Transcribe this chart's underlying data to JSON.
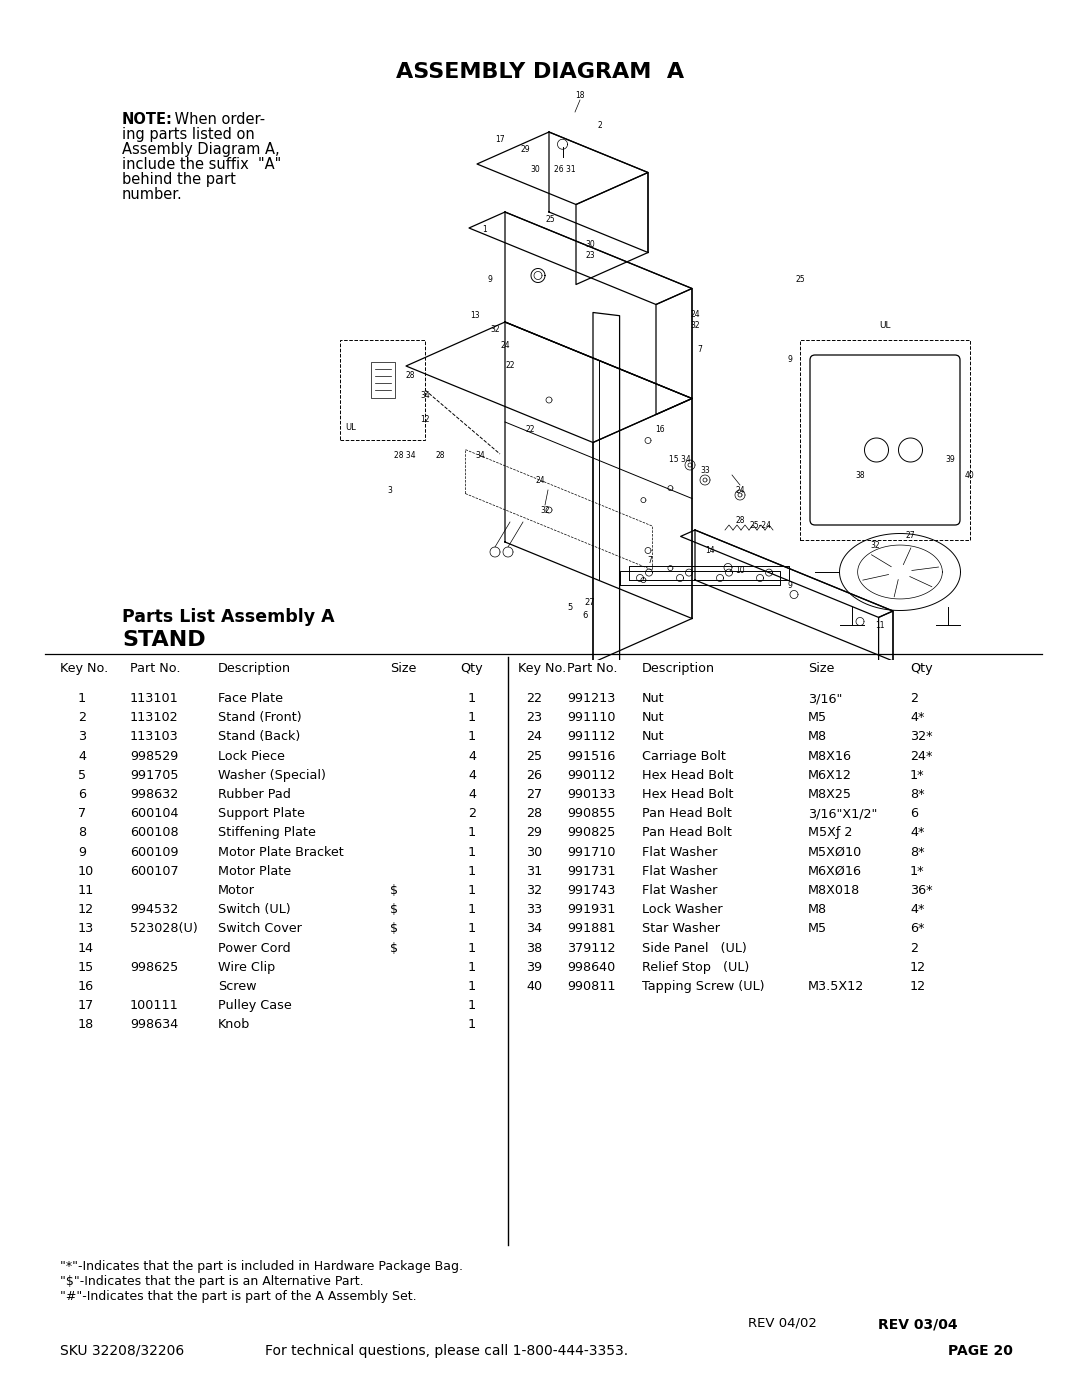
{
  "title": "ASSEMBLY DIAGRAM  A",
  "parts_list_title1": "Parts List Assembly A",
  "parts_list_title2": "STAND",
  "parts_left": [
    [
      "1",
      "113101",
      "Face Plate",
      "",
      "1"
    ],
    [
      "2",
      "113102",
      "Stand (Front)",
      "",
      "1"
    ],
    [
      "3",
      "113103",
      "Stand (Back)",
      "",
      "1"
    ],
    [
      "4",
      "998529",
      "Lock Piece",
      "",
      "4"
    ],
    [
      "5",
      "991705",
      "Washer (Special)",
      "",
      "4"
    ],
    [
      "6",
      "998632",
      "Rubber Pad",
      "",
      "4"
    ],
    [
      "7",
      "600104",
      "Support Plate",
      "",
      "2"
    ],
    [
      "8",
      "600108",
      "Stiffening Plate",
      "",
      "1"
    ],
    [
      "9",
      "600109",
      "Motor Plate Bracket",
      "",
      "1"
    ],
    [
      "10",
      "600107",
      "Motor Plate",
      "",
      "1"
    ],
    [
      "11",
      "",
      "Motor",
      "$",
      "1"
    ],
    [
      "12",
      "994532",
      "Switch (UL)",
      "$",
      "1"
    ],
    [
      "13",
      "523028(U)",
      "Switch Cover",
      "$",
      "1"
    ],
    [
      "14",
      "",
      "Power Cord",
      "$",
      "1"
    ],
    [
      "15",
      "998625",
      "Wire Clip",
      "",
      "1"
    ],
    [
      "16",
      "",
      "Screw",
      "",
      "1"
    ],
    [
      "17",
      "100111",
      "Pulley Case",
      "",
      "1"
    ],
    [
      "18",
      "998634",
      "Knob",
      "",
      "1"
    ]
  ],
  "parts_right": [
    [
      "22",
      "991213",
      "Nut",
      "3/16\"",
      "2"
    ],
    [
      "23",
      "991110",
      "Nut",
      "M5",
      "4*"
    ],
    [
      "24",
      "991112",
      "Nut",
      "M8",
      "32*"
    ],
    [
      "25",
      "991516",
      "Carriage Bolt",
      "M8X16",
      "24*"
    ],
    [
      "26",
      "990112",
      "Hex Head Bolt",
      "M6X12",
      "1*"
    ],
    [
      "27",
      "990133",
      "Hex Head Bolt",
      "M8X25",
      "8*"
    ],
    [
      "28",
      "990855",
      "Pan Head Bolt",
      "3/16\"X1/2\"",
      "6"
    ],
    [
      "29",
      "990825",
      "Pan Head Bolt",
      "M5Xƒ 2",
      "4*"
    ],
    [
      "30",
      "991710",
      "Flat Washer",
      "M5XØ10",
      "8*"
    ],
    [
      "31",
      "991731",
      "Flat Washer",
      "M6XØ16",
      "1*"
    ],
    [
      "32",
      "991743",
      "Flat Washer",
      "M8X018",
      "36*"
    ],
    [
      "33",
      "991931",
      "Lock Washer",
      "M8",
      "4*"
    ],
    [
      "34",
      "991881",
      "Star Washer",
      "M5",
      "6*"
    ],
    [
      "38",
      "379112",
      "Side Panel   (UL)",
      "",
      "2"
    ],
    [
      "39",
      "998640",
      "Relief Stop   (UL)",
      "",
      "12"
    ],
    [
      "40",
      "990811",
      "Tapping Screw (UL)",
      "M3.5X12",
      "12"
    ]
  ],
  "footnotes": [
    "\"*\"-Indicates that the part is included in Hardware Package Bag.",
    "\"$\"-Indicates that the part is an Alternative Part.",
    "\"#\"-Indicates that the part is part of the A Assembly Set."
  ],
  "rev_old": "REV 04/02",
  "rev_new": "REV 03/04",
  "sku_text": "SKU 32208/32206",
  "tech_text": "For technical questions, please call 1-800-444-3353.",
  "page": "PAGE 20",
  "bg_color": "#ffffff"
}
